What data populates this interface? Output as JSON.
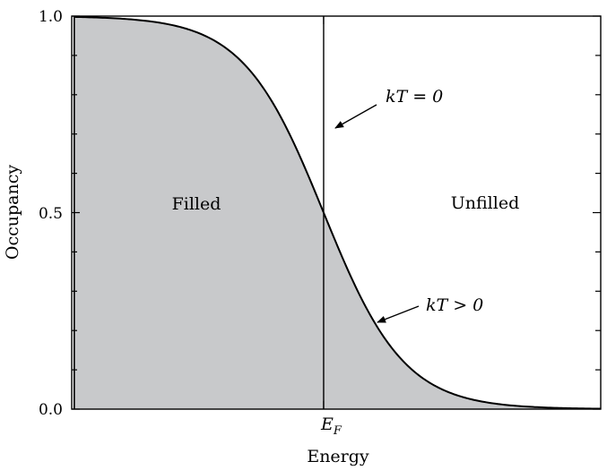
{
  "chart_data": {
    "type": "line",
    "title": "",
    "xlabel": "Energy",
    "ylabel": "Occupancy",
    "ylim": [
      0,
      1
    ],
    "xlim": [
      -1,
      1.1
    ],
    "x_tick_labels": [
      {
        "x": 0,
        "text_main": "E",
        "text_sub": "F"
      }
    ],
    "y_ticks": [
      {
        "value": 0.0,
        "label": "0.0"
      },
      {
        "value": 0.5,
        "label": "0.5"
      },
      {
        "value": 1.0,
        "label": "1.0"
      }
    ],
    "y_minor_ticks": [
      0.1,
      0.2,
      0.3,
      0.4,
      0.6,
      0.7,
      0.8,
      0.9
    ],
    "series": [
      {
        "name": "kT > 0",
        "kind": "fermi-dirac",
        "mu": 0,
        "kT": 0.16,
        "x": [
          -0.99,
          -0.9,
          -0.8,
          -0.7,
          -0.6,
          -0.5,
          -0.4,
          -0.3,
          -0.2,
          -0.1,
          0.0,
          0.1,
          0.2,
          0.3,
          0.4,
          0.5,
          0.6,
          0.7,
          0.8,
          0.9,
          1.0,
          1.1
        ],
        "y": [
          1.0,
          1.0,
          1.0,
          1.0,
          0.98,
          0.95,
          0.91,
          0.82,
          0.72,
          0.62,
          0.5,
          0.38,
          0.27,
          0.17,
          0.09,
          0.05,
          0.02,
          0.01,
          0.0,
          0.0,
          0.0,
          0.0
        ]
      },
      {
        "name": "kT = 0",
        "kind": "step",
        "x": [
          0,
          0
        ],
        "y": [
          0,
          1
        ]
      }
    ],
    "regions": [
      {
        "label": "Filled"
      },
      {
        "label": "Unfilled"
      }
    ],
    "annotations": [
      {
        "text": "kT = 0"
      },
      {
        "text": "kT > 0"
      }
    ],
    "grid": false,
    "fill_under_curve": true,
    "fill_color": "#c8c9cb",
    "line_color": "#000000"
  }
}
